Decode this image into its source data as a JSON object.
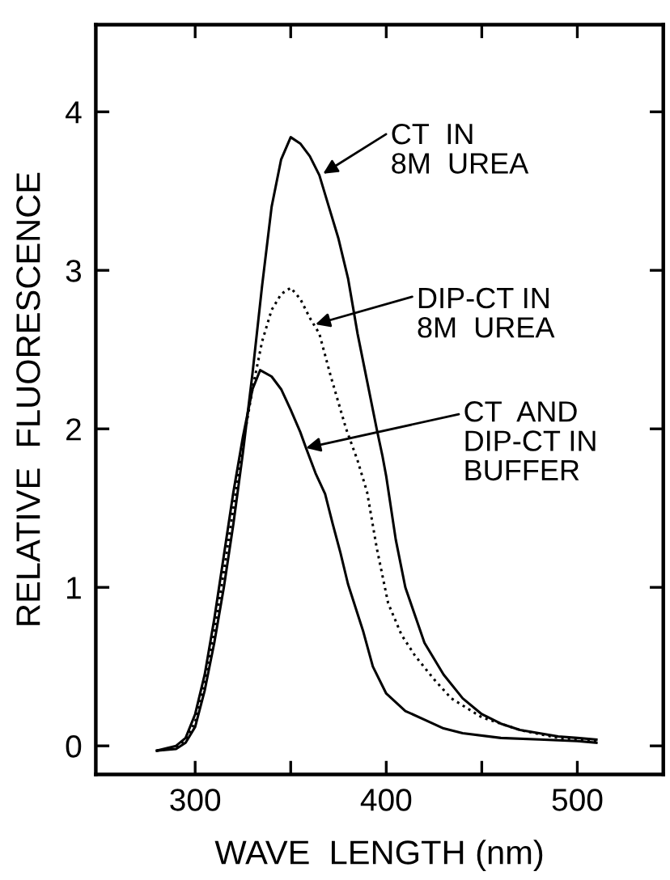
{
  "chart_data": {
    "type": "line",
    "xlabel": "WAVE  LENGTH (nm)",
    "ylabel": "RELATIVE  FLUORESCENCE",
    "xlim": [
      248,
      545
    ],
    "ylim": [
      -0.18,
      4.55
    ],
    "xticks": [
      300,
      {
        "value": 350,
        "label": null
      },
      400,
      {
        "value": 450,
        "label": null
      },
      500
    ],
    "yticks": [
      0,
      1,
      2,
      3,
      4
    ],
    "grid": false,
    "legend": false,
    "marker": "none",
    "series": [
      {
        "color": "#000000",
        "line_style": "solid",
        "x": [
          280,
          290,
          295,
          300,
          305,
          310,
          315,
          320,
          325,
          330,
          335,
          340,
          345,
          350,
          355,
          360,
          365,
          370,
          375,
          380,
          385,
          390,
          395,
          398,
          400,
          405,
          410,
          420,
          430,
          440,
          450,
          460,
          470,
          480,
          490,
          500,
          510
        ],
        "values": [
          -0.03,
          -0.02,
          0.02,
          0.12,
          0.35,
          0.65,
          1.0,
          1.4,
          1.85,
          2.35,
          2.9,
          3.4,
          3.7,
          3.84,
          3.8,
          3.72,
          3.6,
          3.4,
          3.2,
          2.95,
          2.6,
          2.3,
          2.0,
          1.83,
          1.7,
          1.3,
          1.0,
          0.65,
          0.45,
          0.3,
          0.2,
          0.14,
          0.1,
          0.08,
          0.06,
          0.05,
          0.04
        ]
      },
      {
        "color": "#000000",
        "line_style": "dotted",
        "x": [
          280,
          290,
          295,
          300,
          305,
          310,
          315,
          320,
          325,
          330,
          335,
          340,
          345,
          350,
          355,
          360,
          365,
          371,
          379,
          385,
          390,
          395,
          401,
          408,
          415,
          425,
          434,
          450,
          470,
          490,
          510
        ],
        "values": [
          -0.03,
          -0.01,
          0.04,
          0.15,
          0.4,
          0.72,
          1.1,
          1.5,
          1.9,
          2.25,
          2.55,
          2.75,
          2.85,
          2.89,
          2.82,
          2.7,
          2.6,
          2.33,
          2.0,
          1.8,
          1.6,
          1.25,
          0.9,
          0.7,
          0.57,
          0.42,
          0.3,
          0.18,
          0.1,
          0.05,
          0.03
        ]
      },
      {
        "color": "#000000",
        "line_style": "solid",
        "x": [
          280,
          290,
          295,
          300,
          305,
          310,
          315,
          320,
          325,
          330,
          334,
          340,
          345,
          350,
          355,
          358,
          363,
          368,
          372,
          376,
          380,
          388,
          393,
          400,
          410,
          421,
          430,
          440,
          460,
          480,
          500,
          510
        ],
        "values": [
          -0.03,
          0.0,
          0.05,
          0.2,
          0.45,
          0.8,
          1.2,
          1.6,
          1.95,
          2.25,
          2.37,
          2.33,
          2.25,
          2.12,
          1.98,
          1.88,
          1.72,
          1.59,
          1.4,
          1.22,
          1.02,
          0.72,
          0.5,
          0.33,
          0.22,
          0.16,
          0.11,
          0.08,
          0.05,
          0.04,
          0.03,
          0.02
        ]
      }
    ],
    "annotations": [
      {
        "text": "CT  IN\n8M  UREA",
        "x": 367,
        "y": 3.61
      },
      {
        "text": "DIP-CT IN\n8M  UREA",
        "x": 363,
        "y": 2.66
      },
      {
        "text": "CT  AND\nDIP-CT IN\nBUFFER",
        "x": 358,
        "y": 1.88
      }
    ]
  }
}
